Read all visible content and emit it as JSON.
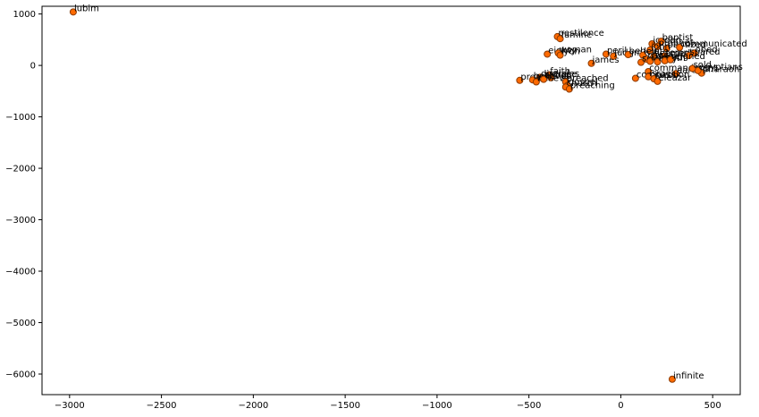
{
  "chart_data": {
    "type": "scatter",
    "title": "",
    "xlabel": "",
    "ylabel": "",
    "xlim": [
      -3150,
      650
    ],
    "ylim": [
      -6400,
      1150
    ],
    "xticks": [
      -3000,
      -2500,
      -2000,
      -1500,
      -1000,
      -500,
      0,
      500
    ],
    "yticks": [
      1000,
      0,
      -1000,
      -2000,
      -3000,
      -4000,
      -5000,
      -6000
    ],
    "grid": false,
    "marker_fill": "#ff6a00",
    "marker_edge": "#8b3a00",
    "points": [
      {
        "label": "lubim",
        "x": -2980,
        "y": 1040
      },
      {
        "label": "infinite",
        "x": 280,
        "y": -6100
      },
      {
        "label": "pestilence",
        "x": -345,
        "y": 560
      },
      {
        "label": "famine",
        "x": -330,
        "y": 520
      },
      {
        "label": "eighty",
        "x": -400,
        "y": 220
      },
      {
        "label": "woman",
        "x": -340,
        "y": 240
      },
      {
        "label": "lyon",
        "x": -330,
        "y": 200
      },
      {
        "label": "james",
        "x": -160,
        "y": 40
      },
      {
        "label": "faith",
        "x": -390,
        "y": -180
      },
      {
        "label": "disciples",
        "x": -440,
        "y": -230
      },
      {
        "label": "grace",
        "x": -380,
        "y": -240
      },
      {
        "label": "preach",
        "x": -550,
        "y": -290
      },
      {
        "label": "believed",
        "x": -480,
        "y": -280
      },
      {
        "label": "believe",
        "x": -460,
        "y": -320
      },
      {
        "label": "christ",
        "x": -420,
        "y": -270
      },
      {
        "label": "preached",
        "x": -300,
        "y": -320
      },
      {
        "label": "gospel",
        "x": -290,
        "y": -390
      },
      {
        "label": "church",
        "x": -300,
        "y": -420
      },
      {
        "label": "preaching",
        "x": -280,
        "y": -460
      },
      {
        "label": "peril",
        "x": -80,
        "y": 220
      },
      {
        "label": "judgment",
        "x": -40,
        "y": 180
      },
      {
        "label": "beheld",
        "x": 40,
        "y": 210
      },
      {
        "label": "jordan",
        "x": 170,
        "y": 420
      },
      {
        "label": "baptist",
        "x": 220,
        "y": 470
      },
      {
        "label": "prophet",
        "x": 200,
        "y": 370
      },
      {
        "label": "baptized",
        "x": 250,
        "y": 330
      },
      {
        "label": "communicated",
        "x": 320,
        "y": 350
      },
      {
        "label": "john",
        "x": 160,
        "y": 300
      },
      {
        "label": "levite",
        "x": 120,
        "y": 200
      },
      {
        "label": "seemed",
        "x": 180,
        "y": 170
      },
      {
        "label": "temple",
        "x": 240,
        "y": 180
      },
      {
        "label": "obed",
        "x": 400,
        "y": 240
      },
      {
        "label": "spared",
        "x": 370,
        "y": 190
      },
      {
        "label": "chose",
        "x": 140,
        "y": 120
      },
      {
        "label": "seventy",
        "x": 110,
        "y": 60
      },
      {
        "label": "laid",
        "x": 160,
        "y": 80
      },
      {
        "label": "fourth",
        "x": 200,
        "y": 70
      },
      {
        "label": "lord",
        "x": 240,
        "y": 90
      },
      {
        "label": "reigned",
        "x": 270,
        "y": 110
      },
      {
        "label": "commandment",
        "x": 150,
        "y": -120
      },
      {
        "label": "aaron",
        "x": 300,
        "y": -160
      },
      {
        "label": "pharaoh",
        "x": 440,
        "y": -150
      },
      {
        "label": "egyptians",
        "x": 420,
        "y": -100
      },
      {
        "label": "sold",
        "x": 390,
        "y": -60
      },
      {
        "label": "compassion",
        "x": 80,
        "y": -250
      },
      {
        "label": "israel",
        "x": 150,
        "y": -220
      },
      {
        "label": "jacob",
        "x": 180,
        "y": -260
      },
      {
        "label": "eleazar",
        "x": 200,
        "y": -310
      }
    ]
  }
}
